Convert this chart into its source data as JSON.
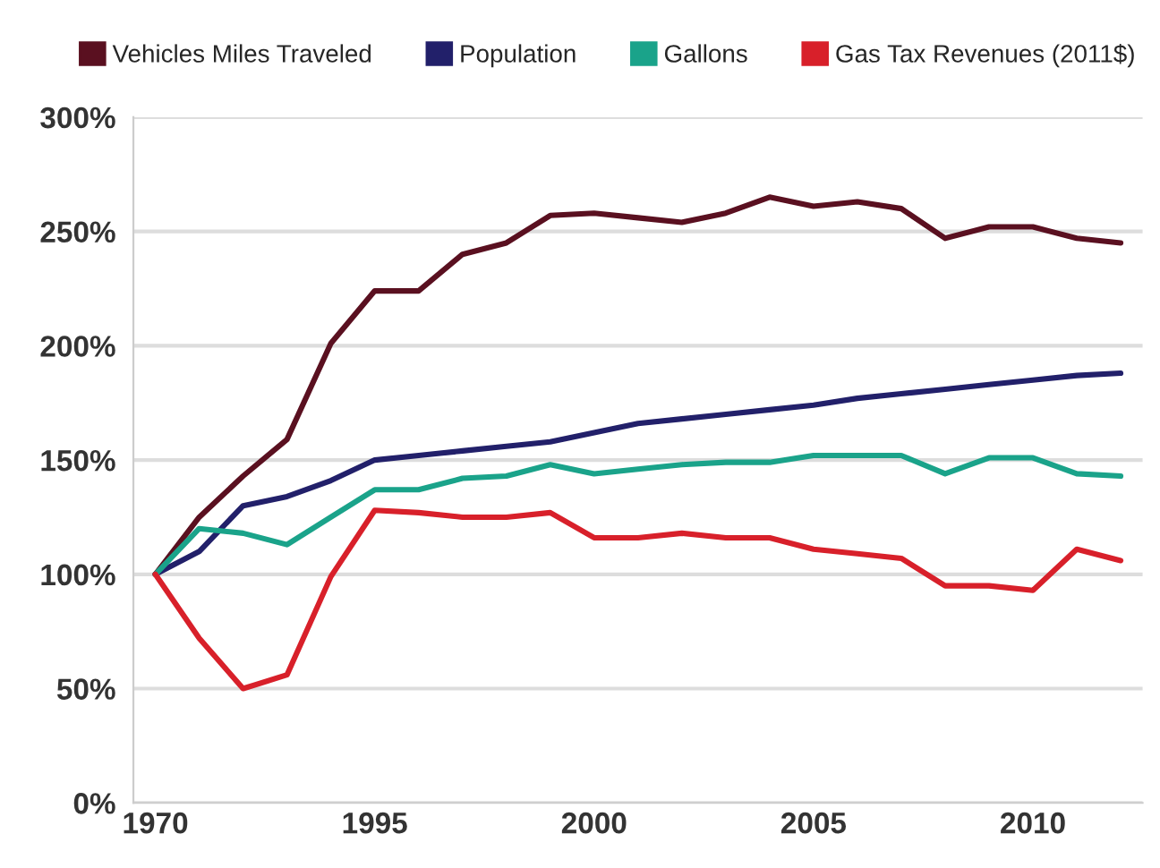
{
  "chart_data": {
    "type": "line",
    "categories": [
      "1970",
      null,
      null,
      null,
      null,
      "1995",
      null,
      null,
      null,
      null,
      "2000",
      null,
      null,
      null,
      null,
      "2005",
      null,
      null,
      null,
      null,
      "2010",
      null,
      null
    ],
    "series": [
      {
        "name": "Vehicles Miles Traveled",
        "color": "#5a1020",
        "values": [
          100,
          125,
          143,
          159,
          201,
          224,
          224,
          240,
          245,
          257,
          258,
          256,
          254,
          258,
          265,
          261,
          263,
          260,
          247,
          252,
          252,
          247,
          245
        ]
      },
      {
        "name": "Population",
        "color": "#22206a",
        "values": [
          100,
          110,
          130,
          134,
          141,
          150,
          152,
          154,
          156,
          158,
          162,
          166,
          168,
          170,
          172,
          174,
          177,
          179,
          181,
          183,
          185,
          187,
          188
        ]
      },
      {
        "name": "Gallons",
        "color": "#1aa38a",
        "values": [
          100,
          120,
          118,
          113,
          125,
          137,
          137,
          142,
          143,
          148,
          144,
          146,
          148,
          149,
          149,
          152,
          152,
          152,
          144,
          151,
          151,
          144,
          143
        ]
      },
      {
        "name": "Gas Tax Revenues (2011$)",
        "color": "#d8202a",
        "values": [
          100,
          72,
          50,
          56,
          99,
          128,
          127,
          125,
          125,
          127,
          116,
          116,
          118,
          116,
          116,
          111,
          109,
          107,
          95,
          95,
          93,
          111,
          106
        ]
      }
    ],
    "ylim": [
      0,
      300
    ],
    "yticks": [
      {
        "value": 0,
        "label": "0%"
      },
      {
        "value": 50,
        "label": "50%"
      },
      {
        "value": 100,
        "label": "100%"
      },
      {
        "value": 150,
        "label": "150%"
      },
      {
        "value": 200,
        "label": "200%"
      },
      {
        "value": 250,
        "label": "250%"
      },
      {
        "value": 300,
        "label": "300%"
      }
    ],
    "grid": "y",
    "legend": "top",
    "marker": "none",
    "line_style": "solid"
  }
}
